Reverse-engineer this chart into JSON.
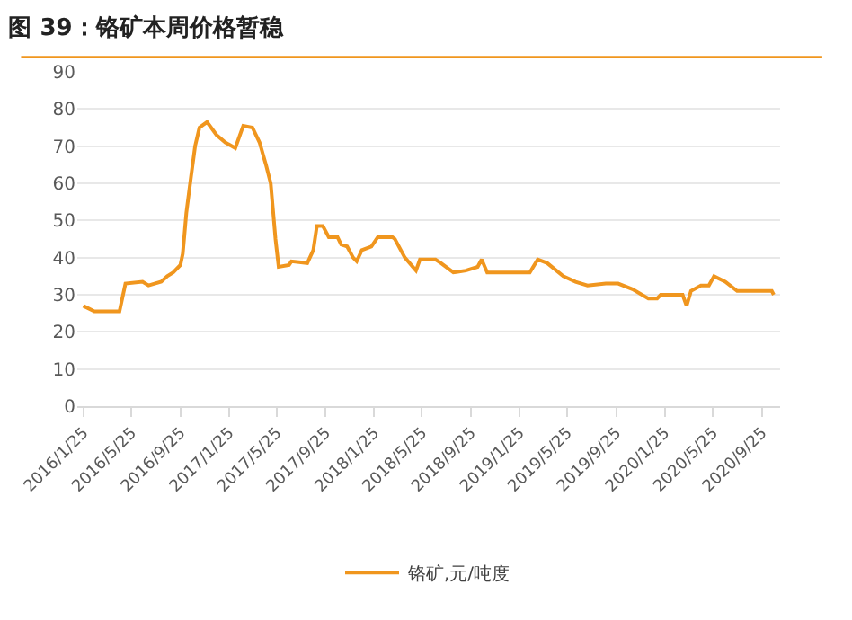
{
  "chart_data": {
    "type": "line",
    "title": "图 39：铬矿本周价格暂稳",
    "x": [
      "2016-01-25",
      "2016-02-22",
      "2016-04-25",
      "2016-05-10",
      "2016-06-22",
      "2016-07-07",
      "2016-08-08",
      "2016-08-23",
      "2016-09-07",
      "2016-09-25",
      "2016-10-01",
      "2016-10-10",
      "2016-10-22",
      "2016-11-01",
      "2016-11-12",
      "2016-12-01",
      "2016-12-25",
      "2017-01-16",
      "2017-02-10",
      "2017-03-02",
      "2017-03-25",
      "2017-04-12",
      "2017-04-28",
      "2017-05-10",
      "2017-05-22",
      "2017-05-30",
      "2017-06-25",
      "2017-07-01",
      "2017-08-10",
      "2017-08-25",
      "2017-09-03",
      "2017-09-18",
      "2017-10-03",
      "2017-10-25",
      "2017-11-03",
      "2017-11-18",
      "2017-12-03",
      "2017-12-12",
      "2017-12-25",
      "2018-01-18",
      "2018-02-03",
      "2018-03-12",
      "2018-03-18",
      "2018-04-12",
      "2018-05-10",
      "2018-05-20",
      "2018-06-28",
      "2018-07-12",
      "2018-08-12",
      "2018-09-12",
      "2018-10-12",
      "2018-10-22",
      "2018-11-05",
      "2019-02-20",
      "2019-03-12",
      "2019-04-05",
      "2019-05-15",
      "2019-06-15",
      "2019-07-15",
      "2019-08-30",
      "2019-09-30",
      "2019-11-05",
      "2019-12-15",
      "2020-01-06",
      "2020-01-15",
      "2020-03-10",
      "2020-03-20",
      "2020-03-31",
      "2020-04-25",
      "2020-05-15",
      "2020-05-28",
      "2020-06-25",
      "2020-07-25",
      "2020-10-20",
      "2020-10-25"
    ],
    "series": [
      {
        "name": "铬矿,元/吨度",
        "color": "#f0961e",
        "values": [
          27,
          25.5,
          25.5,
          33,
          33.5,
          32.5,
          33.5,
          35,
          36,
          38,
          41,
          52,
          62,
          70,
          75,
          76.5,
          73,
          71,
          69.5,
          75.5,
          75,
          71,
          65,
          60,
          45,
          37.5,
          38,
          39,
          38.5,
          42,
          48.5,
          48.5,
          45.5,
          45.5,
          43.5,
          43,
          40,
          39,
          42,
          43,
          45.5,
          45.5,
          45,
          40,
          36.5,
          39.5,
          39.5,
          38.5,
          36,
          36.5,
          37.5,
          39.5,
          36,
          36,
          39.5,
          38.5,
          35,
          33.5,
          32.5,
          33,
          33,
          31.5,
          29,
          29,
          30,
          30,
          27,
          31,
          32.5,
          32.5,
          35,
          33.5,
          31,
          31,
          30
        ]
      }
    ],
    "xlim": [
      "2016-01-10",
      "2020-11-10"
    ],
    "xticks": [
      {
        "value": "2016-01-25",
        "label": "2016/1/25"
      },
      {
        "value": "2016-05-25",
        "label": "2016/5/25"
      },
      {
        "value": "2016-09-25",
        "label": "2016/9/25"
      },
      {
        "value": "2017-01-25",
        "label": "2017/1/25"
      },
      {
        "value": "2017-05-25",
        "label": "2017/5/25"
      },
      {
        "value": "2017-09-25",
        "label": "2017/9/25"
      },
      {
        "value": "2018-01-25",
        "label": "2018/1/25"
      },
      {
        "value": "2018-05-25",
        "label": "2018/5/25"
      },
      {
        "value": "2018-09-25",
        "label": "2018/9/25"
      },
      {
        "value": "2019-01-25",
        "label": "2019/1/25"
      },
      {
        "value": "2019-05-25",
        "label": "2019/5/25"
      },
      {
        "value": "2019-09-25",
        "label": "2019/9/25"
      },
      {
        "value": "2020-01-25",
        "label": "2020/1/25"
      },
      {
        "value": "2020-05-25",
        "label": "2020/5/25"
      },
      {
        "value": "2020-09-25",
        "label": "2020/9/25"
      }
    ],
    "ylim": [
      0,
      90
    ],
    "yticks": [
      0,
      10,
      20,
      30,
      40,
      50,
      60,
      70,
      80,
      90
    ],
    "grid": "y",
    "legend": "bottom",
    "marker": "none",
    "line_style": "solid"
  }
}
